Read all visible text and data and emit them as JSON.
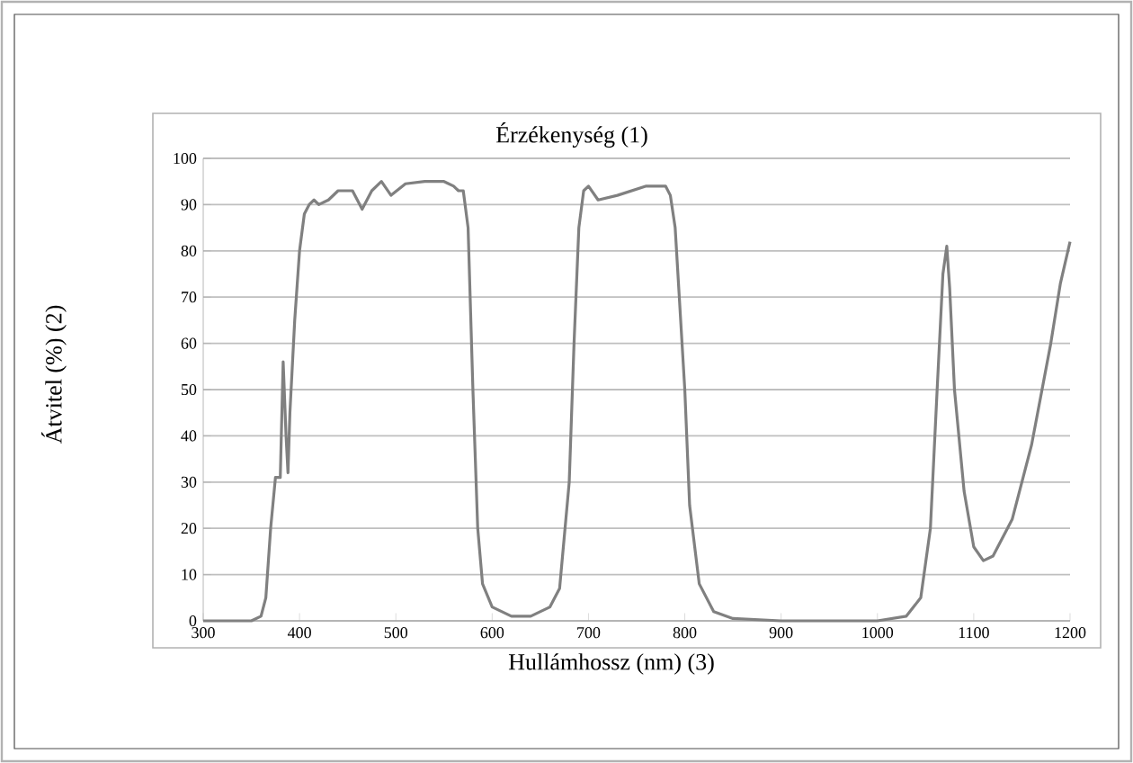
{
  "chart_data": {
    "type": "line",
    "title": "Érzékenység (1)",
    "xlabel": "Hullámhossz (nm) (3)",
    "ylabel": "Átvitel (%) (2)",
    "xlim": [
      300,
      1200
    ],
    "xticks": [
      300,
      400,
      500,
      600,
      700,
      800,
      900,
      1000,
      1100,
      1200
    ],
    "ylim": [
      0,
      100
    ],
    "yticks": [
      0,
      10,
      20,
      30,
      40,
      50,
      60,
      70,
      80,
      90,
      100
    ],
    "grid": "y",
    "marker": "none",
    "line_style": "solid",
    "series": [
      {
        "color": "#808080",
        "x": [
          300,
          350,
          360,
          365,
          370,
          375,
          380,
          383,
          386,
          388,
          390,
          395,
          400,
          405,
          410,
          415,
          420,
          430,
          440,
          455,
          465,
          475,
          485,
          495,
          510,
          530,
          550,
          560,
          565,
          570,
          575,
          580,
          585,
          590,
          600,
          620,
          640,
          660,
          670,
          680,
          685,
          690,
          695,
          700,
          710,
          730,
          760,
          780,
          785,
          790,
          800,
          805,
          815,
          830,
          850,
          900,
          1000,
          1030,
          1045,
          1055,
          1062,
          1068,
          1072,
          1075,
          1080,
          1090,
          1100,
          1110,
          1120,
          1140,
          1160,
          1180,
          1190,
          1200
        ],
        "values": [
          0,
          0,
          1,
          5,
          20,
          31,
          31,
          56,
          40,
          32,
          45,
          65,
          80,
          88,
          90,
          91,
          90,
          91,
          93,
          93,
          89,
          93,
          95,
          92,
          94.5,
          95,
          95,
          94,
          93,
          93,
          85,
          50,
          20,
          8,
          3,
          1,
          1,
          3,
          7,
          30,
          60,
          85,
          93,
          94,
          91,
          92,
          94,
          94,
          92,
          85,
          50,
          25,
          8,
          2,
          0.5,
          0,
          0,
          1,
          5,
          20,
          50,
          75,
          81,
          72,
          50,
          28,
          16,
          13,
          14,
          22,
          38,
          60,
          73,
          82
        ]
      }
    ]
  }
}
